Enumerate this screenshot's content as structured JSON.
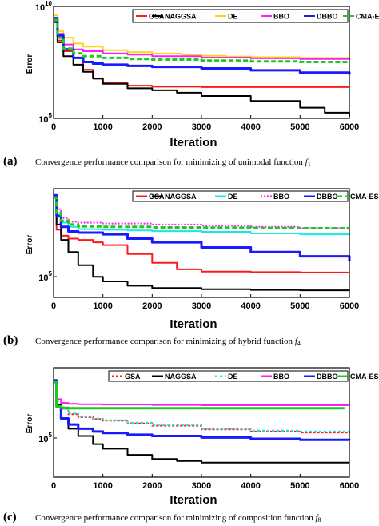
{
  "chart_data": [
    {
      "type": "line",
      "panel_letter": "(a)",
      "caption": "Convergence performance comparison for minimizing of unimodal function",
      "caption_var": "f",
      "caption_sub": "1",
      "xlabel": "Iteration",
      "ylabel": "Error",
      "y_scale": "log",
      "xlim": [
        0,
        6000
      ],
      "ylim": [
        100000,
        10000000000
      ],
      "x_ticks": [
        "0",
        "1000",
        "2000",
        "3000",
        "4000",
        "5000",
        "6000"
      ],
      "y_ticks": [
        {
          "base": "10",
          "exp": "10"
        },
        {
          "base": "10",
          "exp": "5"
        }
      ],
      "legend_position": "top",
      "series": [
        {
          "name": "GSA",
          "color": "#ff1a1a",
          "dash": "",
          "x": [
            0,
            80,
            200,
            400,
            600,
            800,
            1000,
            1500,
            2000,
            3000,
            4000,
            5000,
            6000
          ],
          "y": [
            2000000000,
            300000000,
            100000000,
            50000000,
            15000000,
            6000000,
            3800000,
            2900000,
            2600000,
            2500000,
            2500000,
            2500000,
            2500000
          ]
        },
        {
          "name": "NAGGSA",
          "color": "#000000",
          "dash": "",
          "x": [
            0,
            80,
            200,
            400,
            600,
            800,
            1000,
            1500,
            2000,
            2500,
            3000,
            4000,
            5000,
            5500,
            6000
          ],
          "y": [
            2000000000,
            250000000,
            60000000,
            25000000,
            12000000,
            6000000,
            3500000,
            2200000,
            1800000,
            1400000,
            1000000,
            600000,
            300000,
            180000,
            120000
          ]
        },
        {
          "name": "DE",
          "color": "#ffd21a",
          "dash": "",
          "x": [
            0,
            80,
            200,
            400,
            600,
            1000,
            1500,
            2000,
            2600,
            3000,
            3500,
            4000,
            5000,
            6000
          ],
          "y": [
            4000000000,
            800000000,
            400000000,
            220000000,
            160000000,
            110000000,
            90000000,
            80000000,
            70000000,
            62000000,
            57000000,
            54000000,
            50000000,
            48000000
          ]
        },
        {
          "name": "BBO",
          "color": "#ff1aff",
          "dash": "",
          "x": [
            0,
            80,
            200,
            400,
            600,
            1000,
            1500,
            2000,
            3000,
            4000,
            5000,
            6000
          ],
          "y": [
            3000000000,
            600000000,
            200000000,
            120000000,
            100000000,
            80000000,
            70000000,
            60000000,
            52000000,
            48000000,
            45000000,
            42000000
          ]
        },
        {
          "name": "DBBO",
          "color": "#1a1aff",
          "dash": "",
          "x": [
            0,
            80,
            200,
            400,
            600,
            800,
            1000,
            1500,
            2000,
            3000,
            4000,
            5000,
            6000
          ],
          "y": [
            3000000000,
            500000000,
            120000000,
            50000000,
            33000000,
            28000000,
            25000000,
            22000000,
            20000000,
            17000000,
            14000000,
            11000000,
            9000000
          ]
        },
        {
          "name": "CMA-ES",
          "color": "#1acc1a",
          "dash": "6 3",
          "x": [
            0,
            80,
            200,
            400,
            600,
            1000,
            1500,
            2000,
            3000,
            4000,
            5000,
            6000
          ],
          "y": [
            2500000000,
            400000000,
            130000000,
            80000000,
            60000000,
            50000000,
            45000000,
            42000000,
            38000000,
            35000000,
            33000000,
            32000000
          ]
        }
      ]
    },
    {
      "type": "line",
      "panel_letter": "(b)",
      "caption": "Convergence performance comparison for minimizing of hybrid function",
      "caption_var": "f",
      "caption_sub": "4",
      "xlabel": "Iteration",
      "ylabel": "Error",
      "y_scale": "log",
      "xlim": [
        0,
        6000
      ],
      "ylim": [
        20000,
        100000000
      ],
      "x_ticks": [
        "0",
        "1000",
        "2000",
        "3000",
        "4000",
        "5000",
        "6000"
      ],
      "y_ticks": [
        {
          "base": "10",
          "exp": "5"
        }
      ],
      "legend_position": "top",
      "series": [
        {
          "name": "GSA",
          "color": "#ff1a1a",
          "dash": "",
          "x": [
            0,
            60,
            150,
            300,
            500,
            800,
            1000,
            1500,
            2000,
            2500,
            3000,
            4000,
            5000,
            6000
          ],
          "y": [
            60000000,
            4000000,
            2500000,
            2000000,
            1800000,
            1500000,
            1200000,
            600000,
            300000,
            180000,
            150000,
            145000,
            140000,
            140000
          ]
        },
        {
          "name": "NAGGSA",
          "color": "#000000",
          "dash": "",
          "x": [
            0,
            60,
            150,
            300,
            500,
            800,
            1000,
            1500,
            2000,
            3000,
            4000,
            5000,
            6000
          ],
          "y": [
            60000000,
            6000000,
            1800000,
            700000,
            250000,
            100000,
            70000,
            50000,
            42000,
            38000,
            36000,
            35000,
            34000
          ]
        },
        {
          "name": "DE",
          "color": "#1ae6e6",
          "dash": "",
          "x": [
            0,
            60,
            150,
            300,
            500,
            1000,
            1500,
            2000,
            3000,
            4000,
            5000,
            6000
          ],
          "y": [
            60000000,
            15000000,
            7000000,
            5000000,
            4200000,
            4000000,
            3800000,
            3600000,
            3400000,
            3000000,
            2800000,
            2600000
          ]
        },
        {
          "name": "BBO",
          "color": "#ff1aff",
          "dash": "2 2",
          "x": [
            0,
            60,
            150,
            300,
            500,
            1000,
            2000,
            3000,
            4000,
            5000,
            6000
          ],
          "y": [
            60000000,
            20000000,
            10000000,
            7500000,
            7000000,
            6500000,
            6000000,
            5500000,
            5000000,
            4500000,
            4000000
          ]
        },
        {
          "name": "DBBO",
          "color": "#1a1aff",
          "dash": "",
          "x": [
            0,
            60,
            150,
            300,
            500,
            1000,
            1500,
            2000,
            3000,
            4000,
            5000,
            6000
          ],
          "y": [
            60000000,
            12000000,
            5000000,
            3500000,
            3200000,
            2800000,
            2000000,
            1500000,
            1000000,
            700000,
            500000,
            350000
          ]
        },
        {
          "name": "CMA-ES",
          "color": "#1acc1a",
          "dash": "6 3",
          "x": [
            0,
            60,
            150,
            300,
            500,
            1000,
            2000,
            3000,
            4000,
            5000,
            6000
          ],
          "y": [
            50000000,
            15000000,
            8000000,
            6000000,
            5200000,
            5000000,
            4800000,
            4700000,
            4600000,
            4500000,
            4500000
          ]
        }
      ]
    },
    {
      "type": "line",
      "panel_letter": "(c)",
      "caption": "Convergence performance comparison for minimizing of composition function",
      "caption_var": "f",
      "caption_sub": "8",
      "xlabel": "Iteration",
      "ylabel": "Error",
      "y_scale": "log",
      "xlim": [
        0,
        6000
      ],
      "ylim": [
        3000,
        100000000
      ],
      "x_ticks": [
        "0",
        "1000",
        "2000",
        "3000",
        "4000",
        "5000",
        "6000"
      ],
      "y_ticks": [
        {
          "base": "10",
          "exp": "5"
        }
      ],
      "legend_position": "top",
      "series": [
        {
          "name": "GSA",
          "color": "#ff1a1a",
          "dash": "3 2",
          "x": [
            0,
            60,
            150,
            300,
            500,
            800,
            1000,
            1500,
            2000,
            3000,
            4000,
            5000,
            6000
          ],
          "y": [
            30000000,
            4000000,
            2000000,
            1200000,
            900000,
            750000,
            650000,
            500000,
            400000,
            280000,
            230000,
            210000,
            200000
          ]
        },
        {
          "name": "NAGGSA",
          "color": "#000000",
          "dash": "",
          "x": [
            0,
            60,
            150,
            300,
            500,
            800,
            1000,
            1500,
            2000,
            2500,
            3000,
            4000,
            5000,
            6000
          ],
          "y": [
            30000000,
            3000000,
            800000,
            300000,
            150000,
            70000,
            45000,
            25000,
            17000,
            14000,
            12000,
            12000,
            12000,
            12000
          ]
        },
        {
          "name": "DE",
          "color": "#1ae6e6",
          "dash": "3 3",
          "x": [
            0,
            60,
            150,
            300,
            500,
            800,
            1000,
            1500,
            2000,
            3000,
            4000,
            5000,
            6000
          ],
          "y": [
            30000000,
            4000000,
            2000000,
            1300000,
            950000,
            780000,
            680000,
            530000,
            430000,
            300000,
            250000,
            230000,
            220000
          ]
        },
        {
          "name": "BBO",
          "color": "#ff1aff",
          "dash": "",
          "x": [
            0,
            60,
            150,
            300,
            500,
            1000,
            2000,
            3000,
            4000,
            5000,
            6000
          ],
          "y": [
            30000000,
            5000000,
            3500000,
            3200000,
            3100000,
            3000000,
            2900000,
            2800000,
            2800000,
            2800000,
            2800000
          ]
        },
        {
          "name": "DBBO",
          "color": "#1a1aff",
          "dash": "",
          "x": [
            0,
            60,
            150,
            300,
            500,
            800,
            1000,
            1500,
            2000,
            3000,
            4000,
            5000,
            6000
          ],
          "y": [
            30000000,
            2500000,
            800000,
            450000,
            300000,
            230000,
            200000,
            170000,
            150000,
            130000,
            115000,
            105000,
            100000
          ]
        },
        {
          "name": "CMA-ES",
          "color": "#1acc1a",
          "dash": "",
          "x": [
            0,
            60,
            150,
            300,
            500,
            1000,
            2000,
            3000,
            4000,
            5000,
            5900
          ],
          "y": [
            25000000,
            2500000,
            2200000,
            2100000,
            2100000,
            2100000,
            2100000,
            2100000,
            2100000,
            2100000,
            2100000
          ]
        }
      ]
    }
  ]
}
